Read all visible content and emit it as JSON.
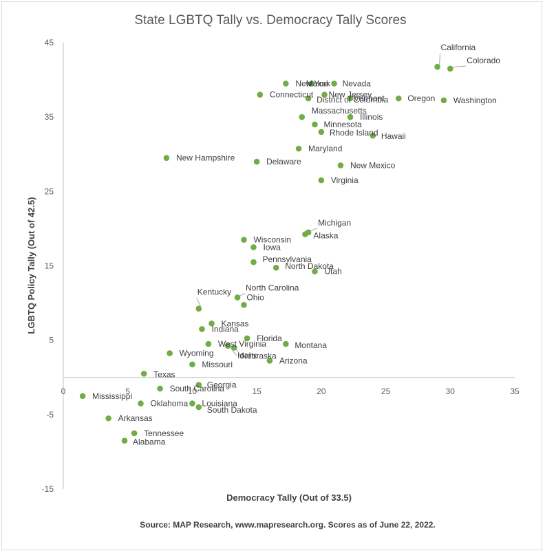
{
  "chart_data": {
    "type": "scatter",
    "title": "State LGBTQ Tally vs. Democracy Tally Scores",
    "xlabel": "Democracy Tally (Out of 33.5)",
    "ylabel": "LGBTQ Policy Tally (Out of 42.5)",
    "source": "Source: MAP Research, www.mapresearch.org. Scores as of June 22, 2022.",
    "xlim": [
      0,
      35
    ],
    "ylim": [
      -15,
      45
    ],
    "xticks": [
      0,
      5,
      10,
      15,
      20,
      25,
      30,
      35
    ],
    "yticks": [
      -15,
      -5,
      5,
      15,
      25,
      35,
      45
    ],
    "grid": false,
    "marker_color": "#70ad47",
    "points": [
      {
        "label": "California",
        "x": 29.0,
        "y": 41.75
      },
      {
        "label": "Colorado",
        "x": 30.0,
        "y": 41.5
      },
      {
        "label": "Washington",
        "x": 29.5,
        "y": 37.25
      },
      {
        "label": "Oregon",
        "x": 26.0,
        "y": 37.5
      },
      {
        "label": "Vermont",
        "x": 22.25,
        "y": 37.5
      },
      {
        "label": "Nevada",
        "x": 21.0,
        "y": 39.5
      },
      {
        "label": "Maine",
        "x": 19.25,
        "y": 39.5
      },
      {
        "label": "New York",
        "x": 17.25,
        "y": 39.5
      },
      {
        "label": "New Jersey",
        "x": 20.25,
        "y": 38.0
      },
      {
        "label": "District of Columbia",
        "x": 19.0,
        "y": 37.5
      },
      {
        "label": "Connecticut",
        "x": 15.25,
        "y": 38.0
      },
      {
        "label": "Massachusetts",
        "x": 18.5,
        "y": 35.0
      },
      {
        "label": "Illinois",
        "x": 22.25,
        "y": 35.0
      },
      {
        "label": "Minnesota",
        "x": 19.5,
        "y": 34.0
      },
      {
        "label": "Rhode Island",
        "x": 20.0,
        "y": 33.0
      },
      {
        "label": "Hawaii",
        "x": 24.0,
        "y": 32.5
      },
      {
        "label": "Maryland",
        "x": 18.25,
        "y": 30.75
      },
      {
        "label": "New Hampshire",
        "x": 8.0,
        "y": 29.5
      },
      {
        "label": "Delaware",
        "x": 15.0,
        "y": 29.0
      },
      {
        "label": "New Mexico",
        "x": 21.5,
        "y": 28.5
      },
      {
        "label": "Virginia",
        "x": 20.0,
        "y": 26.5
      },
      {
        "label": "Michigan",
        "x": 19.0,
        "y": 19.5
      },
      {
        "label": "Alaska",
        "x": 18.75,
        "y": 19.25
      },
      {
        "label": "Wisconsin",
        "x": 14.0,
        "y": 18.5
      },
      {
        "label": "Iowa",
        "x": 14.75,
        "y": 17.5
      },
      {
        "label": "Pennsylvania",
        "x": 14.75,
        "y": 15.5
      },
      {
        "label": "North Dakota",
        "x": 16.5,
        "y": 14.75
      },
      {
        "label": "Utah",
        "x": 19.5,
        "y": 14.25
      },
      {
        "label": "North Carolina",
        "x": 13.5,
        "y": 10.75
      },
      {
        "label": "Ohio",
        "x": 14.0,
        "y": 9.75
      },
      {
        "label": "Kentucky",
        "x": 10.5,
        "y": 9.25
      },
      {
        "label": "Kansas",
        "x": 11.5,
        "y": 7.25
      },
      {
        "label": "Indiana",
        "x": 10.75,
        "y": 6.5
      },
      {
        "label": "Florida",
        "x": 14.25,
        "y": 5.25
      },
      {
        "label": "Montana",
        "x": 17.25,
        "y": 4.5
      },
      {
        "label": "West Virginia",
        "x": 11.25,
        "y": 4.5
      },
      {
        "label": "Nebraska",
        "x": 13.25,
        "y": 4.0
      },
      {
        "label": "Idaho",
        "x": 12.75,
        "y": 4.25
      },
      {
        "label": "Arizona",
        "x": 16.0,
        "y": 2.25
      },
      {
        "label": "Wyoming",
        "x": 8.25,
        "y": 3.25
      },
      {
        "label": "Missouri",
        "x": 10.0,
        "y": 1.75
      },
      {
        "label": "Texas",
        "x": 6.25,
        "y": 0.5
      },
      {
        "label": "Georgia",
        "x": 10.5,
        "y": -1.0
      },
      {
        "label": "South Carolina",
        "x": 7.5,
        "y": -1.5
      },
      {
        "label": "Mississippi",
        "x": 1.5,
        "y": -2.5
      },
      {
        "label": "Oklahoma",
        "x": 6.0,
        "y": -3.5
      },
      {
        "label": "Louisiana",
        "x": 10.0,
        "y": -3.5
      },
      {
        "label": "South Dakota",
        "x": 10.5,
        "y": -4.0
      },
      {
        "label": "Arkansas",
        "x": 3.5,
        "y": -5.5
      },
      {
        "label": "Tennessee",
        "x": 5.5,
        "y": -7.5
      },
      {
        "label": "Alabama",
        "x": 4.75,
        "y": -8.5
      }
    ]
  }
}
